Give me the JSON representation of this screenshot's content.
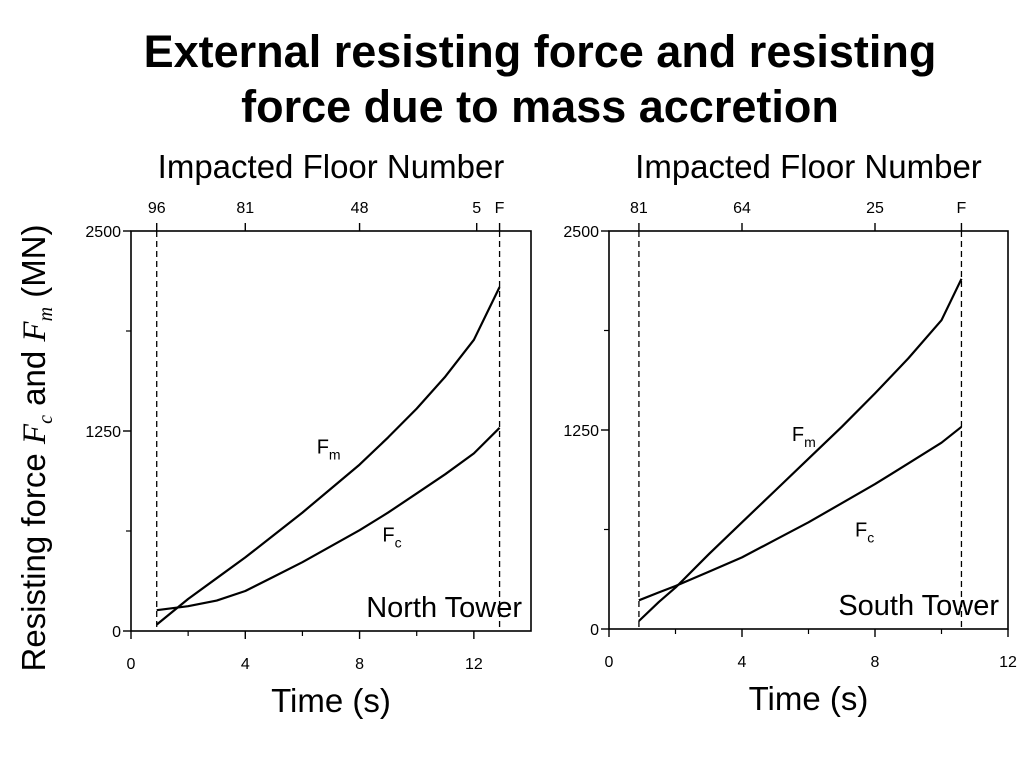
{
  "title": {
    "line1": "External resisting force and resisting",
    "line2": "force due to mass accretion"
  },
  "shared_ylabel": {
    "prefix": "Resisting force ",
    "fc_symbol": "F",
    "fc_sub": "c",
    "mid": " and ",
    "fm_symbol": "F",
    "fm_sub": "m",
    "unit": " (MN)"
  },
  "chart_data": [
    {
      "type": "line",
      "annotation": "North Tower",
      "xlabel": "Time (s)",
      "top_axis_label": "Impacted Floor Number",
      "ylabel": "Resisting force Fc and Fm (MN)",
      "xlim": [
        0,
        14
      ],
      "ylim": [
        0,
        2500
      ],
      "xticks": [
        0,
        4,
        8,
        12
      ],
      "yticks": [
        0,
        1250,
        2500
      ],
      "top_ticks": [
        {
          "x": 0.9,
          "label": "96"
        },
        {
          "x": 4.0,
          "label": "81"
        },
        {
          "x": 8.0,
          "label": "48"
        },
        {
          "x": 12.1,
          "label": "5"
        },
        {
          "x": 12.9,
          "label": "F"
        }
      ],
      "vlines": [
        0.9,
        12.9
      ],
      "series": [
        {
          "name": "Fm",
          "label_sub": "m",
          "x": [
            0.9,
            2,
            3,
            4,
            5,
            6,
            7,
            8,
            9,
            10,
            11,
            12,
            12.9
          ],
          "y": [
            40,
            200,
            330,
            460,
            600,
            740,
            890,
            1040,
            1210,
            1390,
            1590,
            1820,
            2150
          ],
          "label_at": {
            "x": 6.5,
            "y": 1110
          }
        },
        {
          "name": "Fc",
          "label_sub": "c",
          "x": [
            0.9,
            2,
            3,
            4,
            5,
            6,
            7,
            8,
            9,
            10,
            11,
            12,
            12.9
          ],
          "y": [
            130,
            155,
            190,
            250,
            340,
            430,
            530,
            630,
            740,
            860,
            980,
            1110,
            1270
          ],
          "label_at": {
            "x": 8.8,
            "y": 560
          }
        }
      ]
    },
    {
      "type": "line",
      "annotation": "South Tower",
      "xlabel": "Time (s)",
      "top_axis_label": "Impacted Floor Number",
      "ylabel": "Resisting force Fc and Fm (MN)",
      "xlim": [
        0,
        12
      ],
      "ylim": [
        0,
        2500
      ],
      "xticks": [
        0,
        4,
        8,
        12
      ],
      "yticks": [
        0,
        1250,
        2500
      ],
      "top_ticks": [
        {
          "x": 0.9,
          "label": "81"
        },
        {
          "x": 4.0,
          "label": "64"
        },
        {
          "x": 8.0,
          "label": "25"
        },
        {
          "x": 10.6,
          "label": "F"
        }
      ],
      "vlines": [
        0.9,
        10.6
      ],
      "series": [
        {
          "name": "Fm",
          "label_sub": "m",
          "x": [
            0.9,
            1.5,
            2,
            3,
            4,
            5,
            6,
            7,
            8,
            9,
            10,
            10.6
          ],
          "y": [
            50,
            170,
            260,
            470,
            670,
            870,
            1070,
            1270,
            1480,
            1700,
            1940,
            2200
          ],
          "label_at": {
            "x": 5.5,
            "y": 1180
          }
        },
        {
          "name": "Fc",
          "label_sub": "c",
          "x": [
            0.9,
            1.5,
            2,
            3,
            4,
            5,
            6,
            7,
            8,
            9,
            10,
            10.6
          ],
          "y": [
            180,
            230,
            270,
            360,
            450,
            560,
            670,
            790,
            910,
            1040,
            1170,
            1270
          ],
          "label_at": {
            "x": 7.4,
            "y": 580
          }
        }
      ]
    }
  ]
}
